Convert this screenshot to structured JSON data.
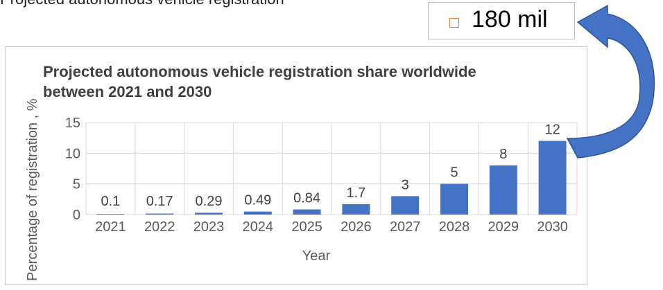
{
  "top_text": "Projected autonomous vehicle registration",
  "callout": {
    "text": "180 mil",
    "marker_icon": "square-marker-icon",
    "marker_color": "#e07b39"
  },
  "arrow": {
    "icon": "curved-arrow-icon",
    "color": "#4472c4"
  },
  "chart_data": {
    "type": "bar",
    "title": "Projected autonomous vehicle registration share worldwide between 2021 and 2030",
    "title_lines": [
      "Projected autonomous vehicle registration share worldwide",
      "between 2021 and 2030"
    ],
    "xlabel": "Year",
    "ylabel": "Percentage of registration , %",
    "categories": [
      "2021",
      "2022",
      "2023",
      "2024",
      "2025",
      "2026",
      "2027",
      "2028",
      "2029",
      "2030"
    ],
    "values": [
      0.1,
      0.17,
      0.29,
      0.49,
      0.84,
      1.7,
      3,
      5,
      8,
      12
    ],
    "data_labels": [
      "0.1",
      "0.17",
      "0.29",
      "0.49",
      "0.84",
      "1.7",
      "3",
      "5",
      "8",
      "12"
    ],
    "ylim": [
      0,
      15
    ],
    "yticks": [
      0,
      5,
      10,
      15
    ],
    "bar_color": "#4472c4",
    "grid": true,
    "legend": "none"
  }
}
